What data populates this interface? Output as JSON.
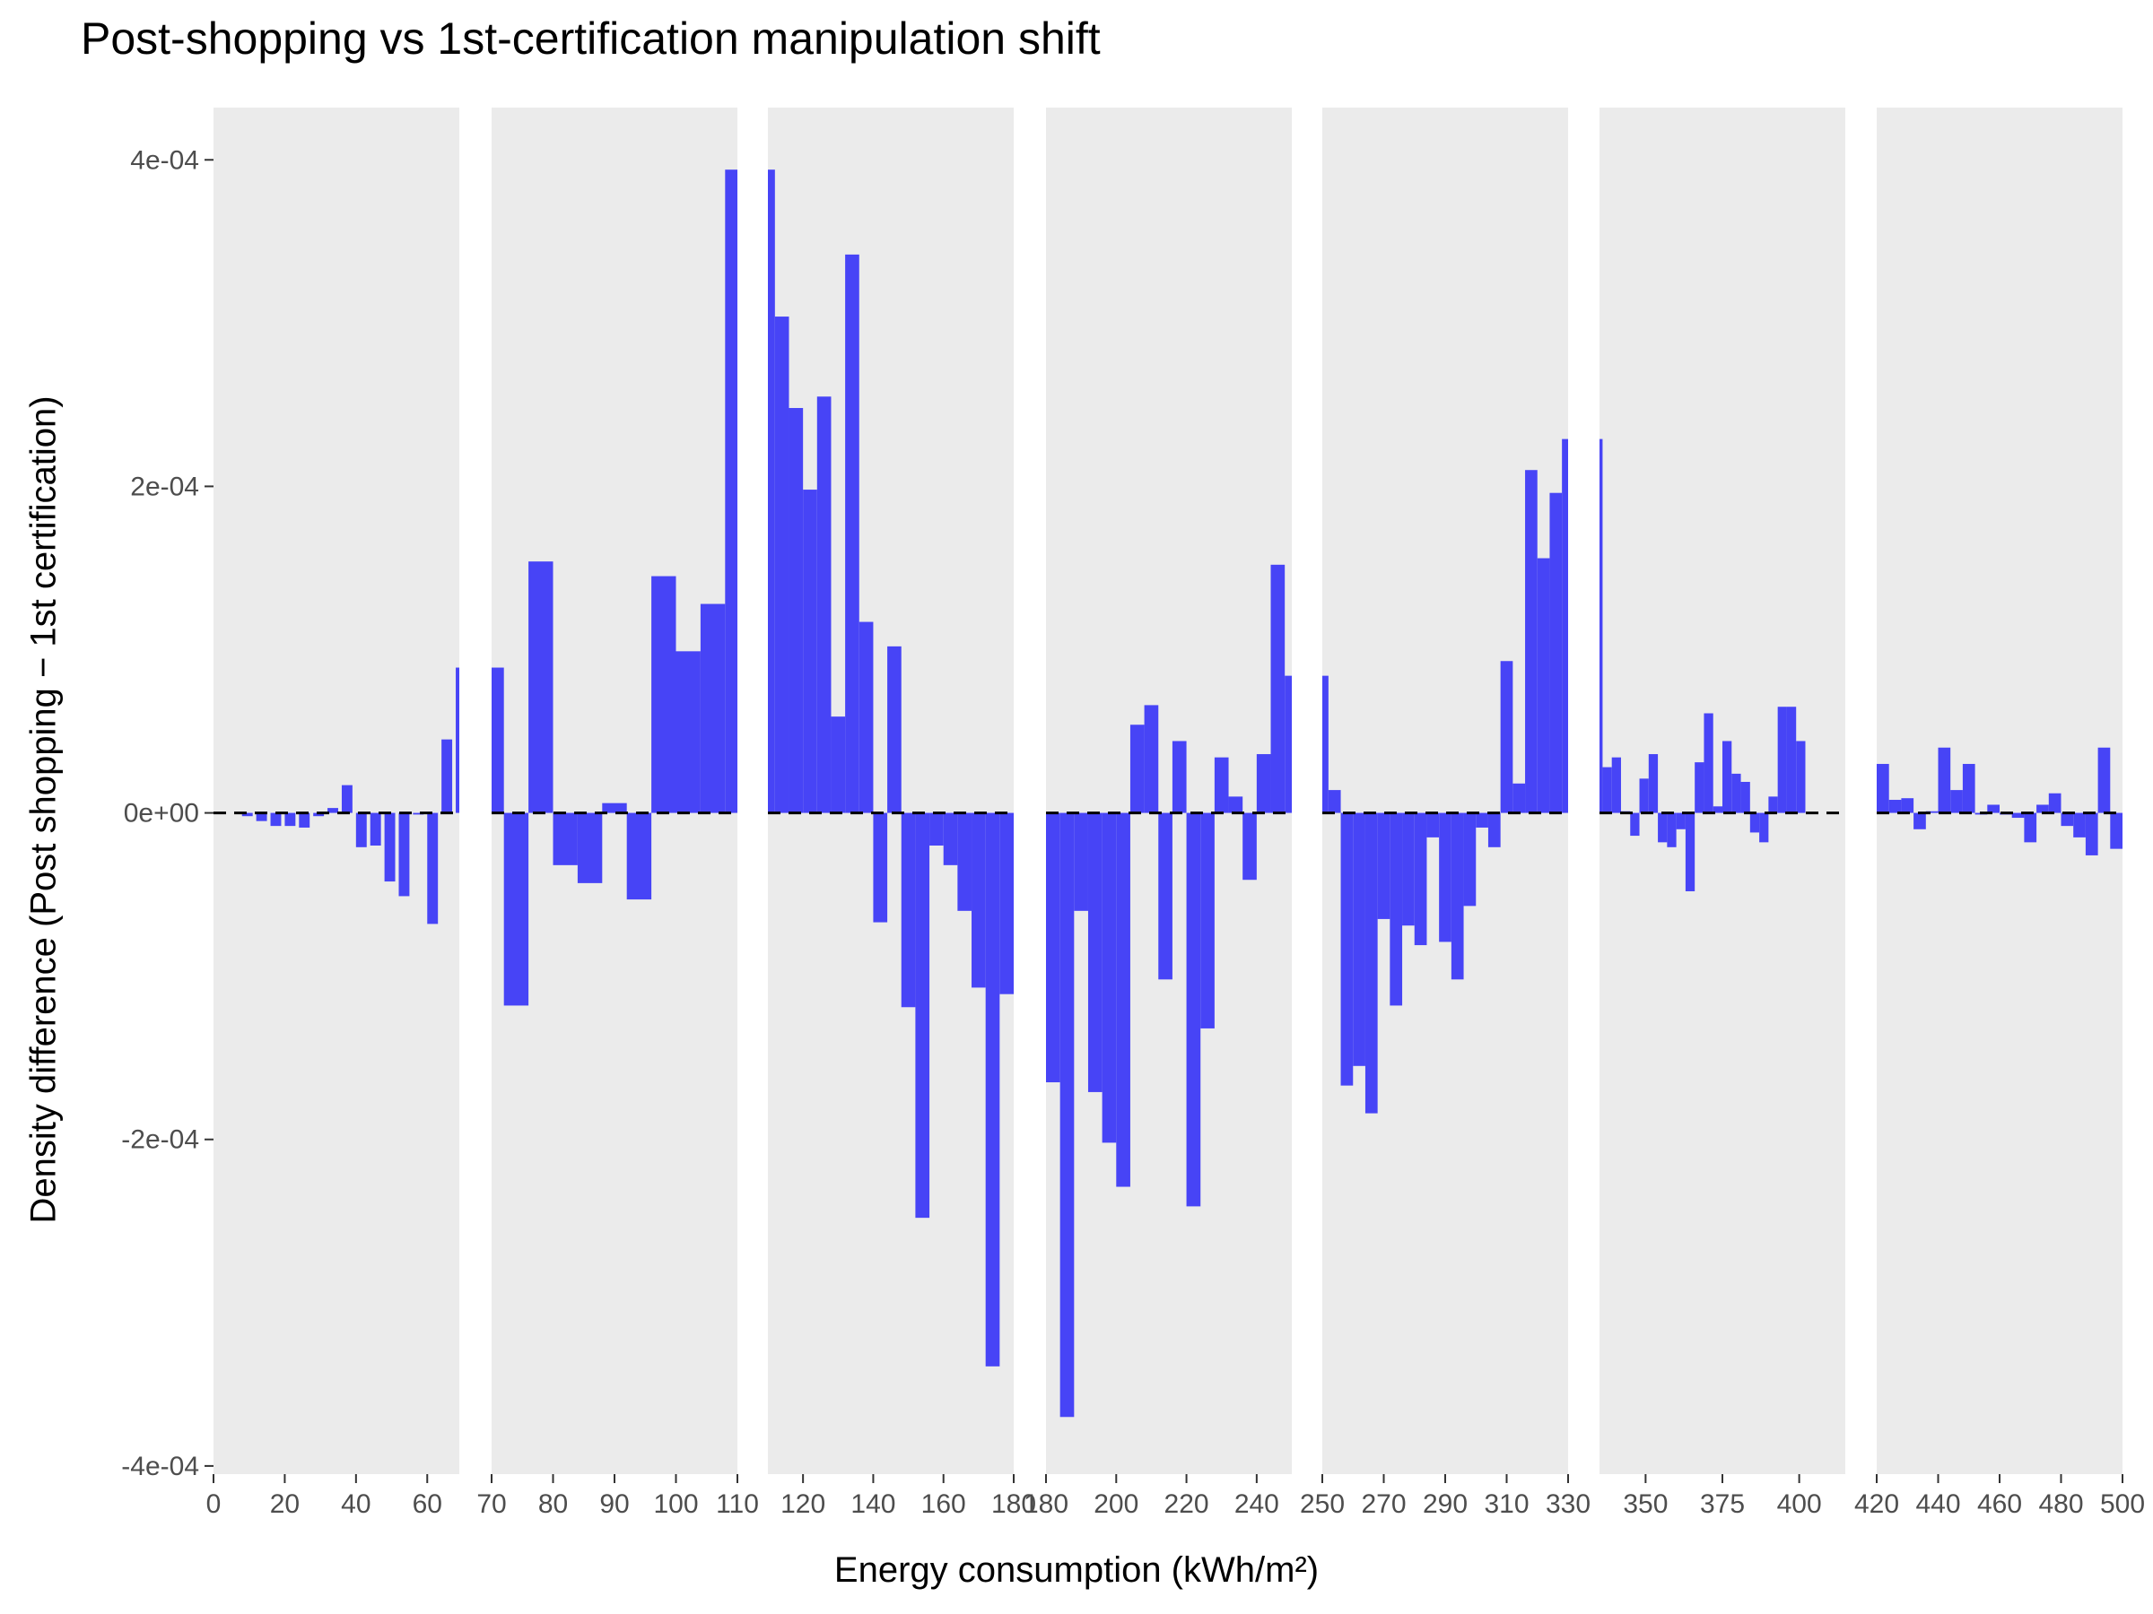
{
  "chart_data": {
    "type": "bar",
    "title": "Post-shopping vs 1st-certification manipulation shift",
    "xlabel": "Energy consumption (kWh/m²)",
    "ylabel": "Density difference (Post shopping − 1st certification)",
    "ylim": [
      -0.0004,
      0.0004
    ],
    "y_ticks": [
      {
        "value": 0.0004,
        "label": "4e-04"
      },
      {
        "value": 0.0002,
        "label": "2e-04"
      },
      {
        "value": 0,
        "label": "0e+00"
      },
      {
        "value": -0.0002,
        "label": "-2e-04"
      },
      {
        "value": -0.0004,
        "label": "-4e-04"
      }
    ],
    "y_range": [
      -0.000405,
      0.000432
    ],
    "baseline": {
      "value": 0,
      "style": "dashed"
    },
    "bar_color": "#4744F6",
    "panel_background": "#EBEBEB",
    "grid": false,
    "legend": "none",
    "panels": [
      {
        "xlim": [
          0,
          69
        ],
        "ticks": [
          {
            "v": 0,
            "label": "0"
          },
          {
            "v": 20,
            "label": "20"
          },
          {
            "v": 40,
            "label": "40"
          },
          {
            "v": 60,
            "label": "60"
          }
        ],
        "bars": [
          [
            8,
            11,
            -2e-06
          ],
          [
            12,
            15,
            -5e-06
          ],
          [
            16,
            19,
            -8e-06
          ],
          [
            20,
            23,
            -8e-06
          ],
          [
            24,
            27,
            -9e-06
          ],
          [
            28,
            31,
            -2e-06
          ],
          [
            32,
            35,
            3e-06
          ],
          [
            36,
            39,
            1.7e-05
          ],
          [
            40,
            43,
            -2.1e-05
          ],
          [
            44,
            47,
            -2e-05
          ],
          [
            48,
            51,
            -4.2e-05
          ],
          [
            52,
            55,
            -5.1e-05
          ],
          [
            56,
            59,
            -1e-06
          ],
          [
            60,
            63,
            -6.8e-05
          ],
          [
            64,
            67,
            4.5e-05
          ],
          [
            68,
            69,
            8.9e-05
          ]
        ]
      },
      {
        "xlim": [
          70,
          110
        ],
        "ticks": [
          {
            "v": 70,
            "label": "70"
          },
          {
            "v": 80,
            "label": "80"
          },
          {
            "v": 90,
            "label": "90"
          },
          {
            "v": 100,
            "label": "100"
          },
          {
            "v": 110,
            "label": "110"
          }
        ],
        "bars": [
          [
            70,
            72,
            8.9e-05
          ],
          [
            72,
            76,
            -0.000118
          ],
          [
            76,
            80,
            0.000154
          ],
          [
            80,
            84,
            -3.2e-05
          ],
          [
            84,
            88,
            -4.3e-05
          ],
          [
            88,
            92,
            6e-06
          ],
          [
            92,
            96,
            -5.3e-05
          ],
          [
            96,
            100,
            0.000145
          ],
          [
            100,
            104,
            9.9e-05
          ],
          [
            104,
            108,
            0.000128
          ],
          [
            108,
            110,
            0.000394
          ]
        ]
      },
      {
        "xlim": [
          110,
          180
        ],
        "ticks": [
          {
            "v": 120,
            "label": "120"
          },
          {
            "v": 140,
            "label": "140"
          },
          {
            "v": 160,
            "label": "160"
          },
          {
            "v": 180,
            "label": "180"
          }
        ],
        "bars": [
          [
            110,
            112,
            0.000394
          ],
          [
            112,
            116,
            0.000304
          ],
          [
            116,
            120,
            0.000248
          ],
          [
            120,
            124,
            0.000198
          ],
          [
            124,
            128,
            0.000255
          ],
          [
            128,
            132,
            5.9e-05
          ],
          [
            132,
            136,
            0.000342
          ],
          [
            136,
            140,
            0.000117
          ],
          [
            140,
            144,
            -6.7e-05
          ],
          [
            144,
            148,
            0.000102
          ],
          [
            148,
            152,
            -0.000119
          ],
          [
            152,
            156,
            -0.000248
          ],
          [
            156,
            160,
            -2e-05
          ],
          [
            160,
            164,
            -3.2e-05
          ],
          [
            164,
            168,
            -6e-05
          ],
          [
            168,
            172,
            -0.000107
          ],
          [
            172,
            176,
            -0.000339
          ],
          [
            176,
            180,
            -0.000111
          ]
        ]
      },
      {
        "xlim": [
          180,
          250
        ],
        "ticks": [
          {
            "v": 180,
            "label": "180"
          },
          {
            "v": 200,
            "label": "200"
          },
          {
            "v": 220,
            "label": "220"
          },
          {
            "v": 240,
            "label": "240"
          }
        ],
        "bars": [
          [
            180,
            184,
            -0.000165
          ],
          [
            184,
            188,
            -0.00037
          ],
          [
            188,
            192,
            -6e-05
          ],
          [
            192,
            196,
            -0.000171
          ],
          [
            196,
            200,
            -0.000202
          ],
          [
            200,
            204,
            -0.000229
          ],
          [
            204,
            208,
            5.4e-05
          ],
          [
            208,
            212,
            6.6e-05
          ],
          [
            212,
            216,
            -0.000102
          ],
          [
            216,
            220,
            4.4e-05
          ],
          [
            220,
            224,
            -0.000241
          ],
          [
            224,
            228,
            -0.000132
          ],
          [
            228,
            232,
            3.4e-05
          ],
          [
            232,
            236,
            1e-05
          ],
          [
            236,
            240,
            -4.1e-05
          ],
          [
            240,
            244,
            3.6e-05
          ],
          [
            244,
            248,
            0.000152
          ],
          [
            248,
            250,
            8.4e-05
          ]
        ]
      },
      {
        "xlim": [
          250,
          330
        ],
        "ticks": [
          {
            "v": 250,
            "label": "250"
          },
          {
            "v": 270,
            "label": "270"
          },
          {
            "v": 290,
            "label": "290"
          },
          {
            "v": 310,
            "label": "310"
          },
          {
            "v": 330,
            "label": "330"
          }
        ],
        "bars": [
          [
            250,
            252,
            8.4e-05
          ],
          [
            252,
            256,
            1.4e-05
          ],
          [
            256,
            260,
            -0.000167
          ],
          [
            260,
            264,
            -0.000155
          ],
          [
            264,
            268,
            -0.000184
          ],
          [
            268,
            272,
            -6.5e-05
          ],
          [
            272,
            276,
            -0.000118
          ],
          [
            276,
            280,
            -6.9e-05
          ],
          [
            280,
            284,
            -8.1e-05
          ],
          [
            284,
            288,
            -1.5e-05
          ],
          [
            288,
            292,
            -7.9e-05
          ],
          [
            292,
            296,
            -0.000102
          ],
          [
            296,
            300,
            -5.7e-05
          ],
          [
            300,
            304,
            -9e-06
          ],
          [
            304,
            308,
            -2.1e-05
          ],
          [
            308,
            312,
            9.3e-05
          ],
          [
            312,
            316,
            1.8e-05
          ],
          [
            316,
            320,
            0.00021
          ],
          [
            320,
            324,
            0.000156
          ],
          [
            324,
            328,
            0.000196
          ],
          [
            328,
            330,
            0.000229
          ]
        ]
      },
      {
        "xlim": [
          335,
          415
        ],
        "ticks": [
          {
            "v": 350,
            "label": "350"
          },
          {
            "v": 375,
            "label": "375"
          },
          {
            "v": 400,
            "label": "400"
          }
        ],
        "bars": [
          [
            335,
            336,
            0.000229
          ],
          [
            336,
            339,
            2.8e-05
          ],
          [
            339,
            342,
            3.4e-05
          ],
          [
            342,
            345,
            1e-06
          ],
          [
            345,
            348,
            -1.4e-05
          ],
          [
            348,
            351,
            2.1e-05
          ],
          [
            351,
            354,
            3.6e-05
          ],
          [
            354,
            357,
            -1.8e-05
          ],
          [
            357,
            360,
            -2.1e-05
          ],
          [
            360,
            363,
            -1e-05
          ],
          [
            363,
            366,
            -4.8e-05
          ],
          [
            366,
            369,
            3.1e-05
          ],
          [
            369,
            372,
            6.1e-05
          ],
          [
            372,
            375,
            4e-06
          ],
          [
            375,
            378,
            4.4e-05
          ],
          [
            378,
            381,
            2.4e-05
          ],
          [
            381,
            384,
            1.9e-05
          ],
          [
            384,
            387,
            -1.2e-05
          ],
          [
            387,
            390,
            -1.8e-05
          ],
          [
            390,
            393,
            1e-05
          ],
          [
            393,
            396,
            6.5e-05
          ],
          [
            396,
            399,
            6.5e-05
          ],
          [
            399,
            402,
            4.4e-05
          ]
        ]
      },
      {
        "xlim": [
          420,
          500
        ],
        "ticks": [
          {
            "v": 420,
            "label": "420"
          },
          {
            "v": 440,
            "label": "440"
          },
          {
            "v": 460,
            "label": "460"
          },
          {
            "v": 480,
            "label": "480"
          },
          {
            "v": 500,
            "label": "500"
          }
        ],
        "bars": [
          [
            420,
            424,
            3e-05
          ],
          [
            424,
            428,
            8e-06
          ],
          [
            428,
            432,
            9e-06
          ],
          [
            432,
            436,
            -1e-05
          ],
          [
            436,
            440,
            1e-06
          ],
          [
            440,
            444,
            4e-05
          ],
          [
            444,
            448,
            1.4e-05
          ],
          [
            448,
            452,
            3e-05
          ],
          [
            452,
            456,
            -1e-06
          ],
          [
            456,
            460,
            5e-06
          ],
          [
            460,
            464,
            -1e-06
          ],
          [
            464,
            468,
            -3e-06
          ],
          [
            468,
            472,
            -1.8e-05
          ],
          [
            472,
            476,
            5e-06
          ],
          [
            476,
            480,
            1.2e-05
          ],
          [
            480,
            484,
            -8e-06
          ],
          [
            484,
            488,
            -1.5e-05
          ],
          [
            488,
            492,
            -2.6e-05
          ],
          [
            492,
            496,
            4e-05
          ],
          [
            496,
            500,
            -2.2e-05
          ]
        ]
      }
    ]
  }
}
